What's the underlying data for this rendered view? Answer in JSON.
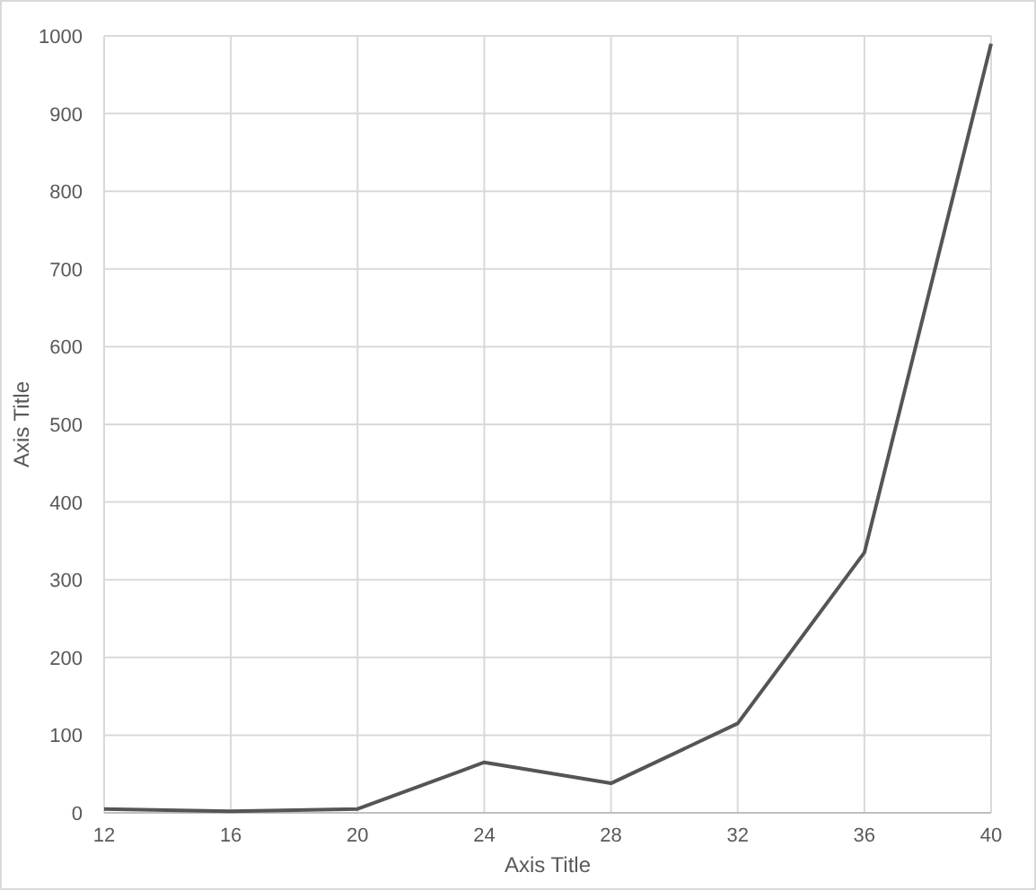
{
  "chart_data": {
    "type": "line",
    "xlabel": "Axis Title",
    "ylabel": "Axis Title",
    "x": [
      12,
      16,
      20,
      24,
      28,
      32,
      36,
      40
    ],
    "series": [
      {
        "color": "#555555",
        "values": [
          5,
          2,
          5,
          65,
          38,
          115,
          335,
          990
        ]
      }
    ],
    "xlim": [
      12,
      40
    ],
    "xticks": [
      12,
      16,
      20,
      24,
      28,
      32,
      36,
      40
    ],
    "ylim": [
      0,
      1000
    ],
    "yticks": [
      0,
      100,
      200,
      300,
      400,
      500,
      600,
      700,
      800,
      900,
      1000
    ],
    "grid": true,
    "marker": "none",
    "line_style": "solid"
  }
}
